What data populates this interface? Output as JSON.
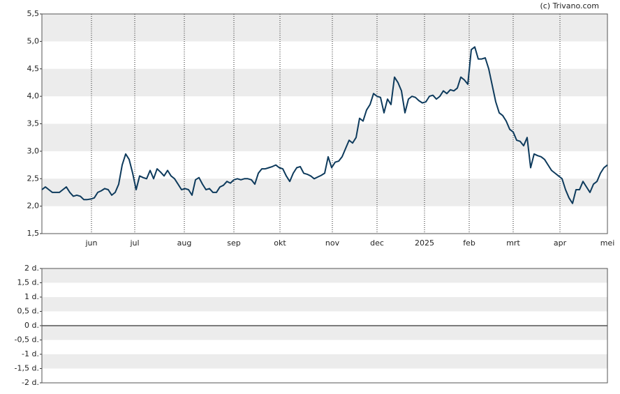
{
  "chart_data": [
    {
      "type": "line",
      "credit": "(c) Trivano.com",
      "xlim": [
        0,
        162
      ],
      "xticks": [
        {
          "value": 14.2,
          "label": "jun"
        },
        {
          "value": 26.6,
          "label": "jul"
        },
        {
          "value": 40.8,
          "label": "aug"
        },
        {
          "value": 55,
          "label": "sep"
        },
        {
          "value": 68.2,
          "label": "okt"
        },
        {
          "value": 83.2,
          "label": "nov"
        },
        {
          "value": 96,
          "label": "dec"
        },
        {
          "value": 109.6,
          "label": "2025"
        },
        {
          "value": 122.4,
          "label": "feb"
        },
        {
          "value": 135,
          "label": "mrt"
        },
        {
          "value": 148.4,
          "label": "apr"
        },
        {
          "value": 162,
          "label": "mei"
        }
      ],
      "ylim": [
        1.5,
        5.5
      ],
      "yticks": [
        {
          "value": 1.5,
          "label": "1,5"
        },
        {
          "value": 2.0,
          "label": "2,0"
        },
        {
          "value": 2.5,
          "label": "2,5"
        },
        {
          "value": 3.0,
          "label": "3,0"
        },
        {
          "value": 3.5,
          "label": "3,5"
        },
        {
          "value": 4.0,
          "label": "4,0"
        },
        {
          "value": 4.5,
          "label": "4,5"
        },
        {
          "value": 5.0,
          "label": "5,0"
        },
        {
          "value": 5.5,
          "label": "5,5"
        }
      ],
      "grid": true,
      "color": "#0d3a5c",
      "values": [
        2.3,
        2.35,
        2.3,
        2.25,
        2.25,
        2.25,
        2.3,
        2.35,
        2.25,
        2.18,
        2.2,
        2.18,
        2.12,
        2.12,
        2.13,
        2.15,
        2.25,
        2.28,
        2.32,
        2.3,
        2.2,
        2.25,
        2.4,
        2.75,
        2.95,
        2.85,
        2.6,
        2.3,
        2.55,
        2.52,
        2.5,
        2.65,
        2.5,
        2.68,
        2.62,
        2.55,
        2.65,
        2.55,
        2.5,
        2.4,
        2.3,
        2.32,
        2.3,
        2.2,
        2.48,
        2.52,
        2.4,
        2.3,
        2.32,
        2.25,
        2.25,
        2.35,
        2.38,
        2.45,
        2.42,
        2.48,
        2.5,
        2.48,
        2.5,
        2.5,
        2.48,
        2.4,
        2.6,
        2.68,
        2.68,
        2.7,
        2.72,
        2.75,
        2.7,
        2.68,
        2.55,
        2.45,
        2.6,
        2.7,
        2.72,
        2.6,
        2.58,
        2.55,
        2.5,
        2.53,
        2.56,
        2.6,
        2.9,
        2.7,
        2.8,
        2.82,
        2.9,
        3.05,
        3.2,
        3.15,
        3.25,
        3.6,
        3.55,
        3.75,
        3.85,
        4.05,
        4.0,
        3.98,
        3.7,
        3.95,
        3.85,
        4.35,
        4.25,
        4.1,
        3.7,
        3.95,
        4.0,
        3.98,
        3.92,
        3.88,
        3.9,
        4.0,
        4.02,
        3.95,
        4.0,
        4.1,
        4.05,
        4.12,
        4.1,
        4.15,
        4.35,
        4.3,
        4.22,
        4.85,
        4.9,
        4.68,
        4.68,
        4.7,
        4.5,
        4.2,
        3.9,
        3.7,
        3.65,
        3.55,
        3.4,
        3.35,
        3.2,
        3.18,
        3.1,
        3.25,
        2.7,
        2.95,
        2.92,
        2.9,
        2.85,
        2.75,
        2.65,
        2.6,
        2.55,
        2.5,
        2.3,
        2.15,
        2.05,
        2.3,
        2.3,
        2.45,
        2.35,
        2.25,
        2.4,
        2.45,
        2.6,
        2.7,
        2.75
      ]
    },
    {
      "type": "line",
      "ylim": [
        -2,
        2
      ],
      "yticks": [
        {
          "value": -2,
          "label": "-2 d."
        },
        {
          "value": -1.5,
          "label": "-1,5 d."
        },
        {
          "value": -1,
          "label": "-1 d."
        },
        {
          "value": -0.5,
          "label": "-0,5 d."
        },
        {
          "value": 0,
          "label": "0 d."
        },
        {
          "value": 0.5,
          "label": "0,5 d."
        },
        {
          "value": 1,
          "label": "1 d."
        },
        {
          "value": 1.5,
          "label": "1,5 d."
        },
        {
          "value": 2,
          "label": "2 d."
        }
      ]
    }
  ]
}
